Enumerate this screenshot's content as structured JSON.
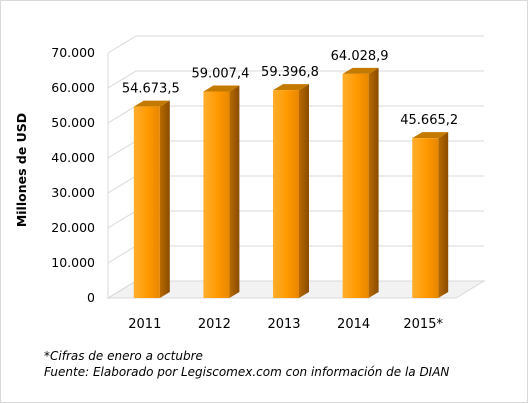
{
  "chart_data": {
    "type": "bar",
    "style": "3d-column",
    "categories": [
      "2011",
      "2012",
      "2013",
      "2014",
      "2015*"
    ],
    "values": [
      54673.5,
      59007.4,
      59396.8,
      64028.9,
      45665.2
    ],
    "data_labels": [
      "54.673,5",
      "59.007,4",
      "59.396,8",
      "64.028,9",
      "45.665,2"
    ],
    "ylabel": "Millones de USD",
    "xlabel": "",
    "ylim": [
      0,
      70000
    ],
    "yticks": [
      0,
      10000,
      20000,
      30000,
      40000,
      50000,
      60000,
      70000
    ],
    "ytick_labels": [
      "0",
      "10.000",
      "20.000",
      "30.000",
      "40.000",
      "50.000",
      "60.000",
      "70.000"
    ],
    "grid": true,
    "colors": {
      "bar_front": "#ff9900",
      "bar_side": "#a85f00",
      "bar_top": "#c47a00",
      "grid": "#d9d9d9",
      "wall": "#e6e6e6"
    }
  },
  "notes": {
    "footnote": "*Cifras de enero a octubre",
    "source": "Fuente: Elaborado por Legiscomex.com con información de la DIAN"
  }
}
